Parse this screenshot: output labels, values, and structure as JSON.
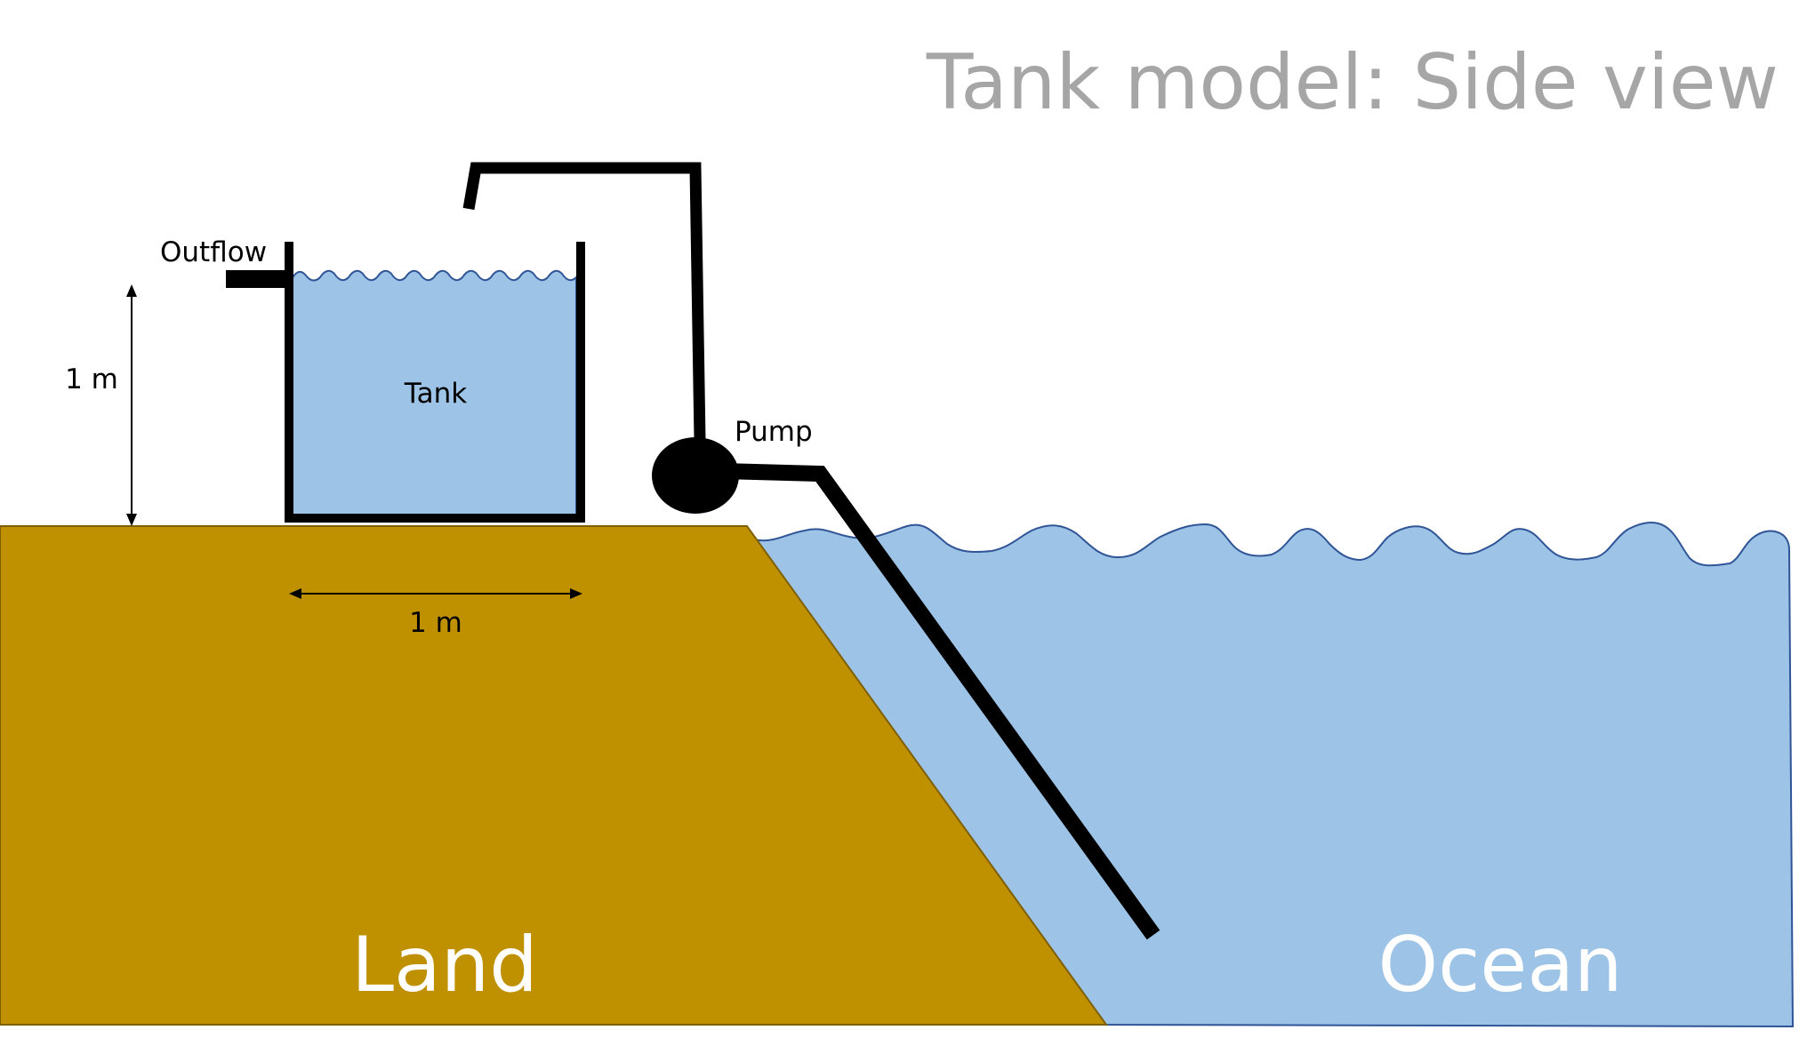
{
  "title": "Tank model: Side view",
  "labels": {
    "outflow": "Outflow",
    "tank": "Tank",
    "pump": "Pump",
    "height_dim": "1 m",
    "width_dim": "1 m",
    "land": "Land",
    "ocean": "Ocean"
  },
  "colors": {
    "land": "#bf9000",
    "water": "#9dc3e6",
    "water_edge": "#2f5597",
    "title": "#a6a6a6",
    "structure": "#000000",
    "region_label": "#ffffff"
  }
}
